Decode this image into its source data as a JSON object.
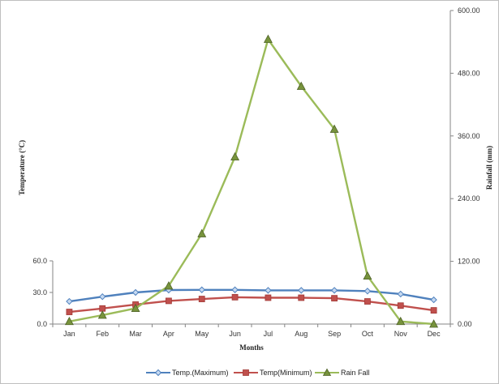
{
  "chart_data": {
    "type": "line",
    "categories": [
      "Jan",
      "Feb",
      "Mar",
      "Apr",
      "May",
      "Jun",
      "Jul",
      "Aug",
      "Sep",
      "Oct",
      "Nov",
      "Dec"
    ],
    "series": [
      {
        "name": "Temp.(Maximum)",
        "axis": "left",
        "color": "#4f81bd",
        "marker": "diamond",
        "values": [
          21.5,
          26.0,
          30.0,
          32.3,
          32.5,
          32.5,
          32.0,
          32.0,
          32.0,
          31.3,
          28.5,
          23.0
        ]
      },
      {
        "name": "Temp(Minimum)",
        "axis": "left",
        "color": "#c0504d",
        "marker": "square",
        "values": [
          11.5,
          14.8,
          18.5,
          22.0,
          23.8,
          25.5,
          25.0,
          25.0,
          24.5,
          21.5,
          17.5,
          13.0
        ]
      },
      {
        "name": "Rain Fall",
        "axis": "right",
        "color": "#9bbb59",
        "marker": "triangle",
        "values": [
          5.0,
          17.0,
          30.0,
          73.0,
          173.0,
          320.0,
          545.0,
          455.0,
          373.0,
          92.0,
          5.0,
          0.0
        ]
      }
    ],
    "xlabel": "Months",
    "ylabel": "Temperature  (°C)",
    "y2label": "Rainfall  (mm)",
    "ylim": [
      0,
      60
    ],
    "y_ticks": [
      "0.0",
      "30.0",
      "60.0"
    ],
    "y2lim": [
      0,
      600
    ],
    "y2_ticks": [
      "0.00",
      "120.00",
      "240.00",
      "360.00",
      "480.00",
      "600.00"
    ],
    "grid": false,
    "legend_position": "bottom"
  }
}
